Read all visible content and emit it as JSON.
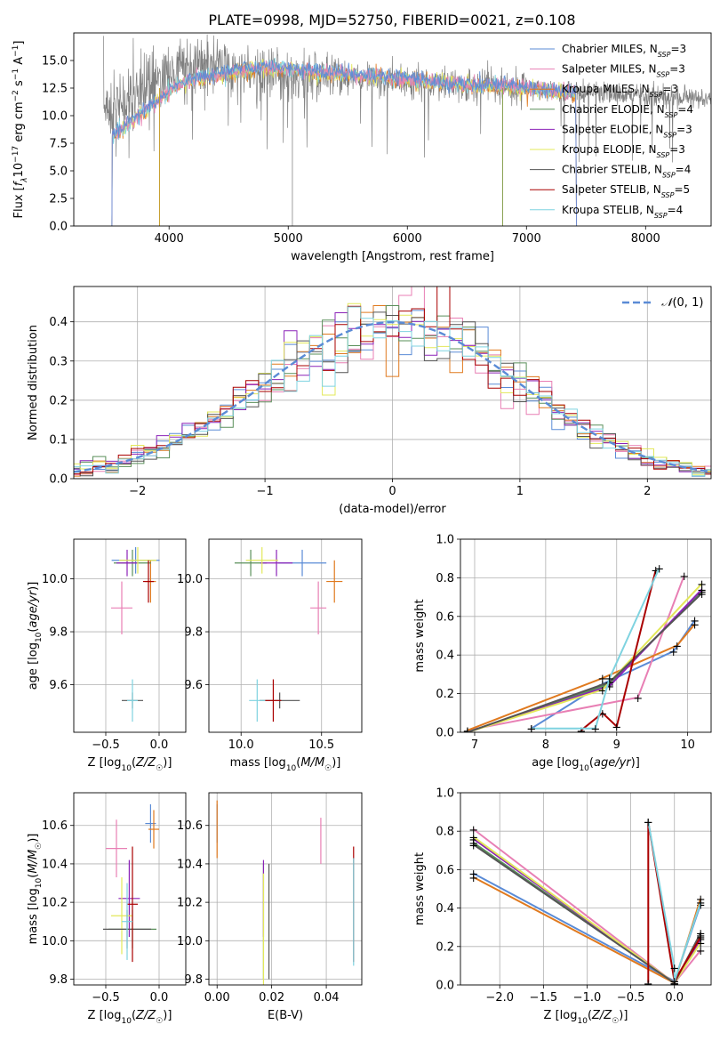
{
  "figure": {
    "title": "PLATE=0998, MJD=52750, FIBERID=0021, z=0.108"
  },
  "colors": {
    "chabrier_miles": "#5a8bd6",
    "salpeter_miles": "#e87fb4",
    "kroupa_miles": "#e07a1f",
    "chabrier_elodie": "#5a8f5a",
    "salpeter_elodie": "#8b22b8",
    "kroupa_elodie": "#e3e85a",
    "chabrier_stelib": "#555555",
    "salpeter_stelib": "#aa0000",
    "kroupa_stelib": "#7fd3e0",
    "normal": "#5a8bd6"
  },
  "chart_data": [
    {
      "id": "spectrum",
      "type": "line",
      "xlabel": "wavelength [Angstrom, rest frame]",
      "ylabel": "Flux [f_λ 10^-17 erg cm^-2 s^-1 A^-1]",
      "ylabel_parts": [
        "Flux [",
        "f",
        "λ",
        "10",
        "−17",
        " erg cm",
        "−2",
        " s",
        "−1",
        " A",
        "−1",
        "]"
      ],
      "xlim": [
        3200,
        8550
      ],
      "ylim": [
        0,
        17.5
      ],
      "xticks": [
        4000,
        5000,
        6000,
        7000,
        8000
      ],
      "yticks": [
        0.0,
        2.5,
        5.0,
        7.5,
        10.0,
        12.5,
        15.0
      ],
      "data_x": [
        3450,
        3550,
        3650,
        3750,
        3850,
        3950,
        4050,
        4150,
        4250,
        4350,
        4500,
        4700,
        4900,
        5100,
        5300,
        5500,
        5700,
        5900,
        6100,
        6300,
        6500,
        6700,
        6900,
        7100,
        7300,
        7500,
        7700,
        7900,
        8100,
        8300,
        8500
      ],
      "data_y": [
        11.0,
        10.5,
        11.5,
        12.0,
        13.0,
        13.5,
        14.0,
        14.5,
        14.8,
        14.5,
        14.2,
        14.0,
        13.8,
        13.7,
        13.6,
        13.5,
        13.3,
        13.1,
        13.0,
        12.8,
        12.8,
        12.6,
        12.5,
        12.3,
        12.1,
        12.0,
        12.0,
        11.9,
        11.8,
        11.7,
        11.6
      ],
      "model_range": [
        3520,
        7420
      ],
      "model_y": [
        8.0,
        9.5,
        11.0,
        12.5,
        13.3,
        13.6,
        14.0,
        14.3,
        14.2,
        14.0,
        13.8,
        13.7,
        13.5,
        13.4,
        13.2,
        13.0,
        12.9,
        12.7,
        12.6,
        12.5,
        12.3,
        12.1,
        11.8
      ],
      "legend": [
        {
          "label": "Chabrier MILES, N",
          "sub": "SSP",
          "tail": "=3",
          "color": "chabrier_miles"
        },
        {
          "label": "Salpeter MILES, N",
          "sub": "SSP",
          "tail": "=3",
          "color": "salpeter_miles"
        },
        {
          "label": "Kroupa MILES, N",
          "sub": "SSP",
          "tail": "=3",
          "color": "kroupa_miles"
        },
        {
          "label": "Chabrier ELODIE, N",
          "sub": "SSP",
          "tail": "=4",
          "color": "chabrier_elodie"
        },
        {
          "label": "Salpeter ELODIE, N",
          "sub": "SSP",
          "tail": "=3",
          "color": "salpeter_elodie"
        },
        {
          "label": "Kroupa ELODIE, N",
          "sub": "SSP",
          "tail": "=3",
          "color": "kroupa_elodie"
        },
        {
          "label": "Chabrier STELIB, N",
          "sub": "SSP",
          "tail": "=4",
          "color": "chabrier_stelib"
        },
        {
          "label": "Salpeter STELIB, N",
          "sub": "SSP",
          "tail": "=5",
          "color": "salpeter_stelib"
        },
        {
          "label": "Kroupa STELIB, N",
          "sub": "SSP",
          "tail": "=4",
          "color": "kroupa_stelib"
        }
      ],
      "grid": false
    },
    {
      "id": "residuals",
      "type": "bar",
      "xlabel": "(data-model)/error",
      "ylabel": "Normed distribution",
      "xlim": [
        -2.5,
        2.5
      ],
      "ylim": [
        0,
        0.49
      ],
      "xticks": [
        -2,
        -1,
        0,
        1,
        2
      ],
      "yticks": [
        0.0,
        0.1,
        0.2,
        0.3,
        0.4
      ],
      "bin_width": 0.1,
      "normal_curve": {
        "label": "𝒩(0, 1)",
        "mu": 0,
        "sigma": 1
      },
      "grid": true,
      "legend_position": "upper right"
    },
    {
      "id": "age_vs_Z",
      "type": "scatter",
      "xlabel": "Z [log10(Z/Z☉)]",
      "ylabel": "age  [log10(age/yr)]",
      "xlim": [
        -0.8,
        0.25
      ],
      "ylim": [
        9.42,
        10.15
      ],
      "xticks": [
        -0.5,
        0.0
      ],
      "yticks": [
        9.6,
        9.8,
        10.0
      ],
      "grid": true,
      "points": [
        {
          "series": "chabrier_miles",
          "x": -0.22,
          "y": 10.07,
          "xerr": 0.45,
          "yerr": 0.05
        },
        {
          "series": "salpeter_miles",
          "x": -0.35,
          "y": 9.89,
          "xerr": 0.2,
          "yerr": 0.1
        },
        {
          "series": "kroupa_miles",
          "x": -0.08,
          "y": 9.99,
          "xerr": 0.1,
          "yerr": 0.08
        },
        {
          "series": "chabrier_elodie",
          "x": -0.25,
          "y": 10.06,
          "xerr": 0.35,
          "yerr": 0.05
        },
        {
          "series": "salpeter_elodie",
          "x": -0.3,
          "y": 10.06,
          "xerr": 0.2,
          "yerr": 0.05
        },
        {
          "series": "kroupa_elodie",
          "x": -0.2,
          "y": 10.07,
          "xerr": 0.35,
          "yerr": 0.05
        },
        {
          "series": "chabrier_stelib",
          "x": -0.25,
          "y": 9.54,
          "xerr": 0.2,
          "yerr": 0.03
        },
        {
          "series": "salpeter_stelib",
          "x": -0.1,
          "y": 9.99,
          "xerr": 0.1,
          "yerr": 0.08
        },
        {
          "series": "kroupa_stelib",
          "x": -0.25,
          "y": 9.54,
          "xerr": 0.1,
          "yerr": 0.08
        }
      ]
    },
    {
      "id": "age_vs_mass",
      "type": "scatter",
      "xlabel": "mass [log10(M/M☉)]",
      "ylabel": "",
      "xlim": [
        9.8,
        10.75
      ],
      "ylim": [
        9.42,
        10.15
      ],
      "xticks": [
        10.0,
        10.5
      ],
      "yticks": [
        9.6,
        9.8,
        10.0
      ],
      "grid": true,
      "points": [
        {
          "series": "chabrier_miles",
          "x": 10.38,
          "y": 10.06,
          "xerr": 0.3,
          "yerr": 0.05
        },
        {
          "series": "salpeter_miles",
          "x": 10.48,
          "y": 9.89,
          "xerr": 0.1,
          "yerr": 0.1
        },
        {
          "series": "kroupa_miles",
          "x": 10.58,
          "y": 9.99,
          "xerr": 0.1,
          "yerr": 0.08
        },
        {
          "series": "chabrier_elodie",
          "x": 10.06,
          "y": 10.06,
          "xerr": 0.2,
          "yerr": 0.05
        },
        {
          "series": "salpeter_elodie",
          "x": 10.22,
          "y": 10.06,
          "xerr": 0.2,
          "yerr": 0.05
        },
        {
          "series": "kroupa_elodie",
          "x": 10.13,
          "y": 10.07,
          "xerr": 0.2,
          "yerr": 0.05
        },
        {
          "series": "chabrier_stelib",
          "x": 10.24,
          "y": 9.54,
          "xerr": 0.25,
          "yerr": 0.03
        },
        {
          "series": "salpeter_stelib",
          "x": 10.2,
          "y": 9.54,
          "xerr": 0.1,
          "yerr": 0.08
        },
        {
          "series": "kroupa_stelib",
          "x": 10.1,
          "y": 9.54,
          "xerr": 0.1,
          "yerr": 0.08
        }
      ]
    },
    {
      "id": "massweight_vs_age",
      "type": "line",
      "xlabel": "age  [log10(age/yr)]",
      "ylabel": "mass weight",
      "xlim": [
        6.8,
        10.33
      ],
      "ylim": [
        0,
        1.0
      ],
      "xticks": [
        7,
        8,
        9,
        10
      ],
      "yticks": [
        0.0,
        0.2,
        0.4,
        0.6,
        0.8,
        1.0
      ],
      "grid": true,
      "series": [
        {
          "name": "chabrier_miles",
          "x": [
            7.8,
            8.8,
            9.8,
            10.1
          ],
          "y": [
            0.02,
            0.25,
            0.42,
            0.58
          ]
        },
        {
          "name": "salpeter_miles",
          "x": [
            6.9,
            9.3,
            9.95
          ],
          "y": [
            0.01,
            0.18,
            0.81
          ]
        },
        {
          "name": "kroupa_miles",
          "x": [
            6.9,
            8.8,
            9.85,
            10.1
          ],
          "y": [
            0.01,
            0.28,
            0.45,
            0.56
          ]
        },
        {
          "name": "chabrier_elodie",
          "x": [
            6.9,
            8.9,
            10.2
          ],
          "y": [
            0.0,
            0.25,
            0.73
          ]
        },
        {
          "name": "salpeter_elodie",
          "x": [
            6.9,
            8.9,
            10.2
          ],
          "y": [
            0.0,
            0.24,
            0.74
          ]
        },
        {
          "name": "kroupa_elodie",
          "x": [
            6.9,
            8.8,
            10.2
          ],
          "y": [
            0.0,
            0.22,
            0.77
          ]
        },
        {
          "name": "chabrier_stelib",
          "x": [
            6.9,
            8.9,
            10.2
          ],
          "y": [
            0.0,
            0.26,
            0.72
          ]
        },
        {
          "name": "salpeter_stelib",
          "x": [
            8.5,
            8.8,
            9.0,
            9.55
          ],
          "y": [
            0.01,
            0.1,
            0.03,
            0.84
          ]
        },
        {
          "name": "kroupa_stelib",
          "x": [
            7.8,
            8.7,
            8.9,
            9.6
          ],
          "y": [
            0.02,
            0.02,
            0.28,
            0.85
          ]
        }
      ]
    },
    {
      "id": "mass_vs_Z",
      "type": "scatter",
      "xlabel": "Z [log10(Z/Z☉)]",
      "ylabel": "mass [log10(M/M☉)]",
      "xlim": [
        -0.8,
        0.25
      ],
      "ylim": [
        9.77,
        10.77
      ],
      "xticks": [
        -0.5,
        0.0
      ],
      "yticks": [
        9.8,
        10.0,
        10.2,
        10.4,
        10.6
      ],
      "grid": true,
      "points": [
        {
          "series": "chabrier_miles",
          "x": -0.08,
          "y": 10.61,
          "xerr": 0.1,
          "yerr": 0.1
        },
        {
          "series": "salpeter_miles",
          "x": -0.4,
          "y": 10.48,
          "xerr": 0.2,
          "yerr": 0.15
        },
        {
          "series": "kroupa_miles",
          "x": -0.05,
          "y": 10.58,
          "xerr": 0.1,
          "yerr": 0.1
        },
        {
          "series": "chabrier_elodie",
          "x": -0.25,
          "y": 10.06,
          "xerr": 0.45,
          "yerr": 0.1
        },
        {
          "series": "salpeter_elodie",
          "x": -0.28,
          "y": 10.22,
          "xerr": 0.2,
          "yerr": 0.2
        },
        {
          "series": "kroupa_elodie",
          "x": -0.35,
          "y": 10.13,
          "xerr": 0.2,
          "yerr": 0.2
        },
        {
          "series": "chabrier_stelib",
          "x": -0.3,
          "y": 10.06,
          "xerr": 0.45,
          "yerr": 0.1
        },
        {
          "series": "salpeter_stelib",
          "x": -0.25,
          "y": 10.19,
          "xerr": 0.1,
          "yerr": 0.3
        },
        {
          "series": "kroupa_stelib",
          "x": -0.3,
          "y": 10.1,
          "xerr": 0.1,
          "yerr": 0.2
        }
      ]
    },
    {
      "id": "mass_vs_ebv",
      "type": "scatter",
      "xlabel": "E(B-V)",
      "ylabel": "",
      "xlim": [
        -0.003,
        0.053
      ],
      "ylim": [
        9.77,
        10.77
      ],
      "xticks": [
        0.0,
        0.02,
        0.04
      ],
      "yticks": [
        9.8,
        10.0,
        10.2,
        10.4,
        10.6
      ],
      "grid": true,
      "points": [
        {
          "series": "chabrier_miles",
          "x": 0.0,
          "y": 10.61,
          "xerr": 0,
          "yerr": 0.1
        },
        {
          "series": "salpeter_miles",
          "x": 0.038,
          "y": 10.52,
          "xerr": 0,
          "yerr": 0.12
        },
        {
          "series": "kroupa_miles",
          "x": 0.0,
          "y": 10.58,
          "xerr": 0,
          "yerr": 0.15
        },
        {
          "series": "chabrier_elodie",
          "x": 0.017,
          "y": 10.1,
          "xerr": 0,
          "yerr": 0.3
        },
        {
          "series": "salpeter_elodie",
          "x": 0.017,
          "y": 10.22,
          "xerr": 0,
          "yerr": 0.2
        },
        {
          "series": "kroupa_elodie",
          "x": 0.017,
          "y": 10.05,
          "xerr": 0,
          "yerr": 0.3
        },
        {
          "series": "chabrier_stelib",
          "x": 0.019,
          "y": 10.1,
          "xerr": 0,
          "yerr": 0.3
        },
        {
          "series": "salpeter_stelib",
          "x": 0.05,
          "y": 10.19,
          "xerr": 0,
          "yerr": 0.3
        },
        {
          "series": "kroupa_stelib",
          "x": 0.05,
          "y": 10.15,
          "xerr": 0,
          "yerr": 0.28
        }
      ]
    },
    {
      "id": "massweight_vs_Z",
      "type": "line",
      "xlabel": "Z [log10(Z/Z☉)]",
      "ylabel": "mass weight",
      "xlim": [
        -2.45,
        0.42
      ],
      "ylim": [
        0,
        1.0
      ],
      "xticks": [
        -2.0,
        -1.5,
        -1.0,
        -0.5,
        0.0
      ],
      "yticks": [
        0.0,
        0.2,
        0.4,
        0.6,
        0.8,
        1.0
      ],
      "grid": true,
      "series": [
        {
          "name": "chabrier_miles",
          "x": [
            -2.3,
            0.0,
            0.3
          ],
          "y": [
            0.58,
            0.02,
            0.42
          ]
        },
        {
          "name": "salpeter_miles",
          "x": [
            -2.3,
            0.0,
            0.3
          ],
          "y": [
            0.81,
            0.01,
            0.18
          ]
        },
        {
          "name": "kroupa_miles",
          "x": [
            -2.3,
            0.0,
            0.3
          ],
          "y": [
            0.56,
            0.01,
            0.45
          ]
        },
        {
          "name": "chabrier_elodie",
          "x": [
            -2.3,
            0.0,
            0.3
          ],
          "y": [
            0.74,
            0.01,
            0.26
          ]
        },
        {
          "name": "salpeter_elodie",
          "x": [
            -2.3,
            0.0,
            0.3
          ],
          "y": [
            0.76,
            0.01,
            0.24
          ]
        },
        {
          "name": "kroupa_elodie",
          "x": [
            -2.3,
            0.0,
            0.3
          ],
          "y": [
            0.77,
            0.01,
            0.22
          ]
        },
        {
          "name": "chabrier_stelib",
          "x": [
            -2.3,
            0.0,
            0.3
          ],
          "y": [
            0.73,
            0.01,
            0.27
          ]
        },
        {
          "name": "salpeter_stelib",
          "x": [
            -0.3,
            -0.3,
            0.0,
            0.3
          ],
          "y": [
            0.01,
            0.85,
            0.02,
            0.25
          ]
        },
        {
          "name": "kroupa_stelib",
          "x": [
            -0.3,
            0.0,
            0.0,
            0.3
          ],
          "y": [
            0.85,
            0.09,
            0.02,
            0.43
          ]
        }
      ]
    }
  ]
}
